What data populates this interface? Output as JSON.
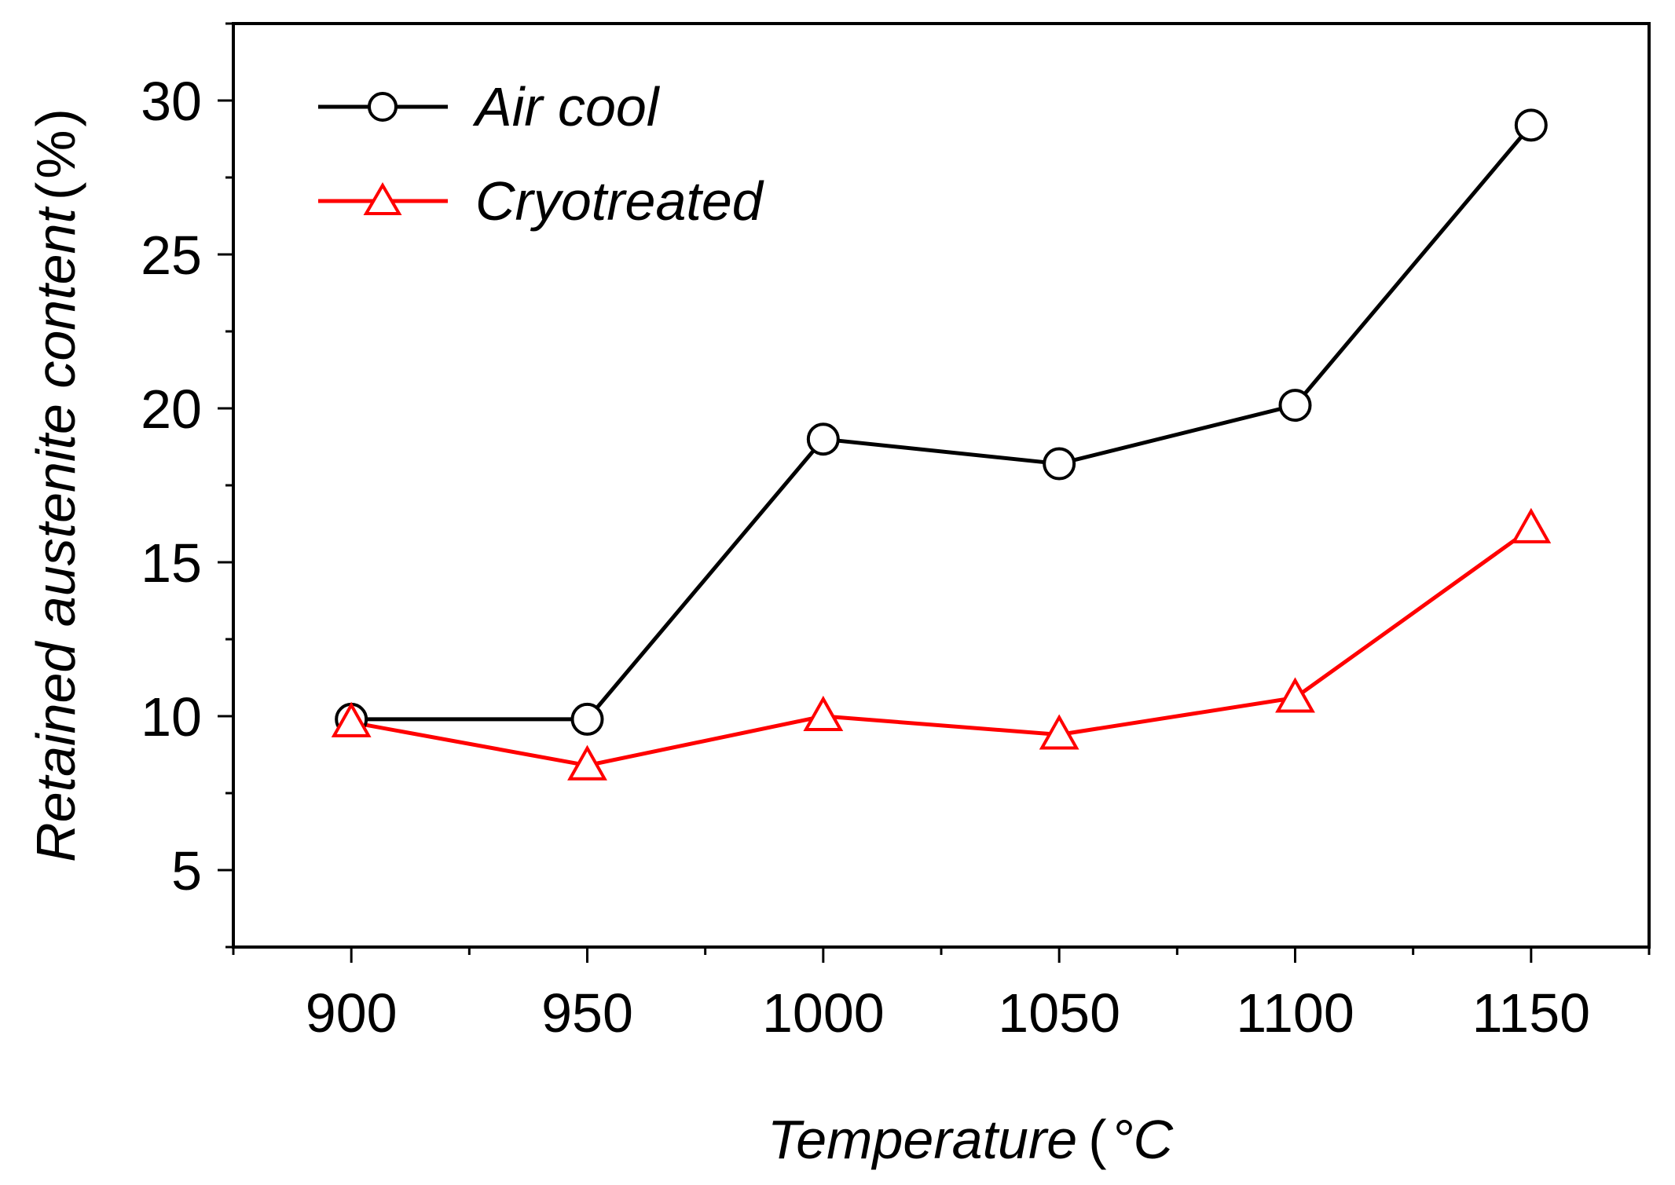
{
  "chart_data": {
    "type": "line",
    "title": "",
    "xlabel": "Temperature (°C)",
    "ylabel": "Retained austenite content (%)",
    "xlabel_parts": {
      "main": "Temperature",
      "unit_open": "(",
      "unit": "°C",
      "unit_close": ")"
    },
    "ylabel_parts": {
      "main": "Retained austenite content",
      "unit_open": "(",
      "unit": "%",
      "unit_close": ")"
    },
    "xlim": [
      875,
      1175
    ],
    "ylim": [
      2.5,
      32.5
    ],
    "x_ticks": [
      900,
      950,
      1000,
      1050,
      1100,
      1150
    ],
    "x_tick_labels": [
      "900",
      "950",
      "1000",
      "1050",
      "1100",
      "1150"
    ],
    "x_minor_ticks": [
      875,
      925,
      975,
      1025,
      1075,
      1125,
      1175
    ],
    "y_ticks": [
      5,
      10,
      15,
      20,
      25,
      30
    ],
    "y_tick_labels": [
      "5",
      "10",
      "15",
      "20",
      "25",
      "30"
    ],
    "y_minor_ticks": [
      2.5,
      7.5,
      12.5,
      17.5,
      22.5,
      27.5,
      32.5
    ],
    "grid": false,
    "legend_position": "top-left",
    "x": [
      900,
      950,
      1000,
      1050,
      1100,
      1150
    ],
    "series": [
      {
        "name": "Air cool",
        "marker": "circle",
        "color": "#000000",
        "values": [
          9.9,
          9.9,
          19.0,
          18.2,
          20.1,
          29.2
        ]
      },
      {
        "name": "Cryotreated",
        "marker": "triangle",
        "color": "#ff0000",
        "values": [
          9.8,
          8.4,
          10.0,
          9.4,
          10.6,
          16.1
        ]
      }
    ]
  }
}
